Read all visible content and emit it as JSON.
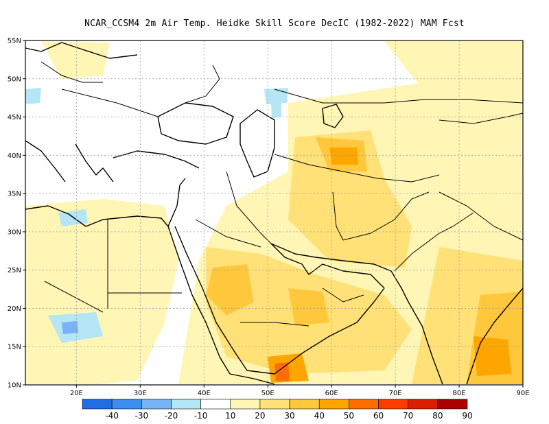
{
  "title": "NCAR_CCSM4  2m Air Temp. Heidke Skill Score DecIC (1982-2022) MAM Fcst",
  "map": {
    "lon_range": [
      12,
      90
    ],
    "lat_range": [
      10,
      55
    ],
    "lon_ticks": [
      "20E",
      "30E",
      "40E",
      "50E",
      "60E",
      "70E",
      "80E",
      "90E"
    ],
    "lon_tick_values": [
      20,
      30,
      40,
      50,
      60,
      70,
      80,
      90
    ],
    "lat_ticks": [
      "10N",
      "15N",
      "20N",
      "25N",
      "30N",
      "35N",
      "40N",
      "45N",
      "50N",
      "55N"
    ],
    "lat_tick_values": [
      10,
      15,
      20,
      25,
      30,
      35,
      40,
      45,
      50,
      55
    ],
    "grid": "dotted"
  },
  "colorbar": {
    "labels": [
      "-40",
      "-30",
      "-20",
      "-10",
      "10",
      "20",
      "30",
      "40",
      "50",
      "60",
      "70",
      "80",
      "90"
    ],
    "colors": [
      "#1e6fe6",
      "#3c8ff0",
      "#78b4f5",
      "#b4e6f5",
      "#ffffff",
      "#fff5b4",
      "#ffe178",
      "#ffc83c",
      "#ffa500",
      "#ff6e00",
      "#ff3c00",
      "#dc1e00",
      "#aa0000"
    ]
  }
}
